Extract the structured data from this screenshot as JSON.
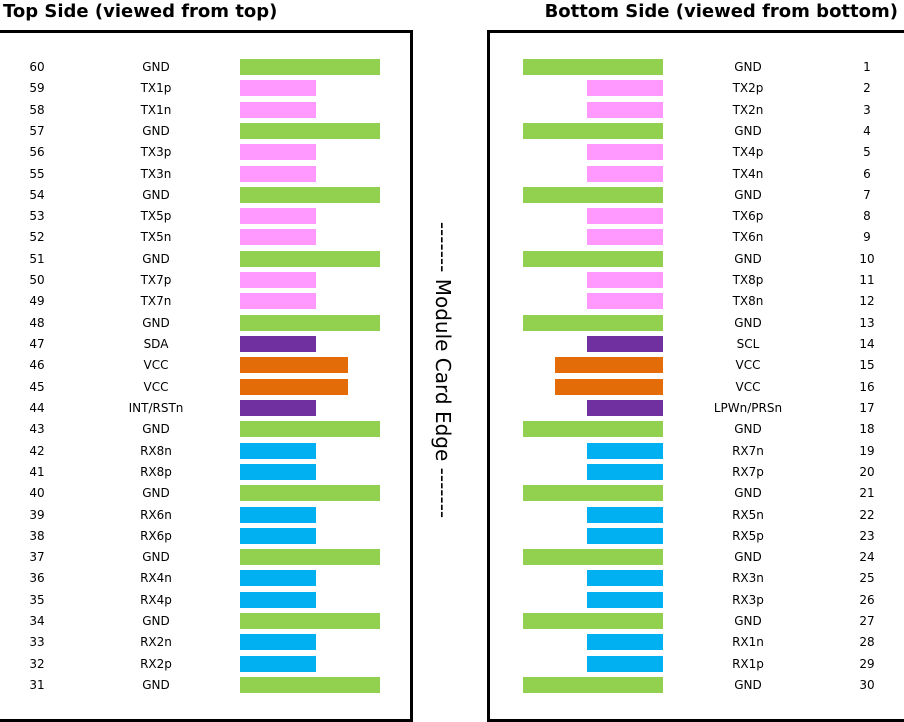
{
  "titles": {
    "left": "Top Side (viewed from top)",
    "right": "Bottom Side (viewed from bottom)"
  },
  "edge_label": "------- Module Card Edge -------",
  "colors": {
    "gnd": "#92d050",
    "tx": "#ff99ff",
    "rx": "#00b0f0",
    "ctl": "#7030a0",
    "vcc": "#e36c09"
  },
  "top_side": [
    {
      "pin": "60",
      "label": "GND",
      "type": "gnd"
    },
    {
      "pin": "59",
      "label": "TX1p",
      "type": "tx"
    },
    {
      "pin": "58",
      "label": "TX1n",
      "type": "tx"
    },
    {
      "pin": "57",
      "label": "GND",
      "type": "gnd"
    },
    {
      "pin": "56",
      "label": "TX3p",
      "type": "tx"
    },
    {
      "pin": "55",
      "label": "TX3n",
      "type": "tx"
    },
    {
      "pin": "54",
      "label": "GND",
      "type": "gnd"
    },
    {
      "pin": "53",
      "label": "TX5p",
      "type": "tx"
    },
    {
      "pin": "52",
      "label": "TX5n",
      "type": "tx"
    },
    {
      "pin": "51",
      "label": "GND",
      "type": "gnd"
    },
    {
      "pin": "50",
      "label": "TX7p",
      "type": "tx"
    },
    {
      "pin": "49",
      "label": "TX7n",
      "type": "tx"
    },
    {
      "pin": "48",
      "label": "GND",
      "type": "gnd"
    },
    {
      "pin": "47",
      "label": "SDA",
      "type": "ctl"
    },
    {
      "pin": "46",
      "label": "VCC",
      "type": "vcc"
    },
    {
      "pin": "45",
      "label": "VCC",
      "type": "vcc"
    },
    {
      "pin": "44",
      "label": "INT/RSTn",
      "type": "ctl"
    },
    {
      "pin": "43",
      "label": "GND",
      "type": "gnd"
    },
    {
      "pin": "42",
      "label": "RX8n",
      "type": "rx"
    },
    {
      "pin": "41",
      "label": "RX8p",
      "type": "rx"
    },
    {
      "pin": "40",
      "label": "GND",
      "type": "gnd"
    },
    {
      "pin": "39",
      "label": "RX6n",
      "type": "rx"
    },
    {
      "pin": "38",
      "label": "RX6p",
      "type": "rx"
    },
    {
      "pin": "37",
      "label": "GND",
      "type": "gnd"
    },
    {
      "pin": "36",
      "label": "RX4n",
      "type": "rx"
    },
    {
      "pin": "35",
      "label": "RX4p",
      "type": "rx"
    },
    {
      "pin": "34",
      "label": "GND",
      "type": "gnd"
    },
    {
      "pin": "33",
      "label": "RX2n",
      "type": "rx"
    },
    {
      "pin": "32",
      "label": "RX2p",
      "type": "rx"
    },
    {
      "pin": "31",
      "label": "GND",
      "type": "gnd"
    }
  ],
  "bottom_side": [
    {
      "pin": "1",
      "label": "GND",
      "type": "gnd"
    },
    {
      "pin": "2",
      "label": "TX2p",
      "type": "tx"
    },
    {
      "pin": "3",
      "label": "TX2n",
      "type": "tx"
    },
    {
      "pin": "4",
      "label": "GND",
      "type": "gnd"
    },
    {
      "pin": "5",
      "label": "TX4p",
      "type": "tx"
    },
    {
      "pin": "6",
      "label": "TX4n",
      "type": "tx"
    },
    {
      "pin": "7",
      "label": "GND",
      "type": "gnd"
    },
    {
      "pin": "8",
      "label": "TX6p",
      "type": "tx"
    },
    {
      "pin": "9",
      "label": "TX6n",
      "type": "tx"
    },
    {
      "pin": "10",
      "label": "GND",
      "type": "gnd"
    },
    {
      "pin": "11",
      "label": "TX8p",
      "type": "tx"
    },
    {
      "pin": "12",
      "label": "TX8n",
      "type": "tx"
    },
    {
      "pin": "13",
      "label": "GND",
      "type": "gnd"
    },
    {
      "pin": "14",
      "label": "SCL",
      "type": "ctl"
    },
    {
      "pin": "15",
      "label": "VCC",
      "type": "vcc"
    },
    {
      "pin": "16",
      "label": "VCC",
      "type": "vcc"
    },
    {
      "pin": "17",
      "label": "LPWn/PRSn",
      "type": "ctl"
    },
    {
      "pin": "18",
      "label": "GND",
      "type": "gnd"
    },
    {
      "pin": "19",
      "label": "RX7n",
      "type": "rx"
    },
    {
      "pin": "20",
      "label": "RX7p",
      "type": "rx"
    },
    {
      "pin": "21",
      "label": "GND",
      "type": "gnd"
    },
    {
      "pin": "22",
      "label": "RX5n",
      "type": "rx"
    },
    {
      "pin": "23",
      "label": "RX5p",
      "type": "rx"
    },
    {
      "pin": "24",
      "label": "GND",
      "type": "gnd"
    },
    {
      "pin": "25",
      "label": "RX3n",
      "type": "rx"
    },
    {
      "pin": "26",
      "label": "RX3p",
      "type": "rx"
    },
    {
      "pin": "27",
      "label": "GND",
      "type": "gnd"
    },
    {
      "pin": "28",
      "label": "RX1n",
      "type": "rx"
    },
    {
      "pin": "29",
      "label": "RX1p",
      "type": "rx"
    },
    {
      "pin": "30",
      "label": "GND",
      "type": "gnd"
    }
  ]
}
